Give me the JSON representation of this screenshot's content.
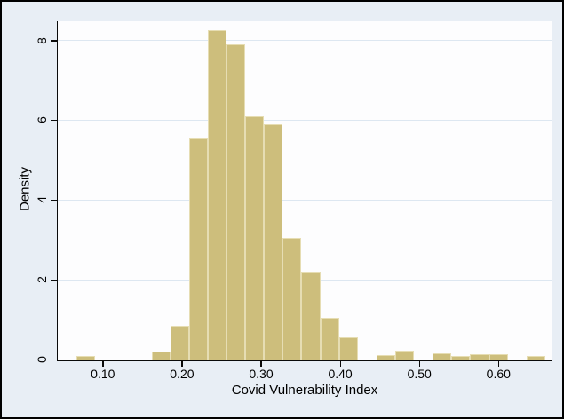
{
  "chart_data": {
    "type": "bar",
    "subtype": "histogram",
    "title": "",
    "xlabel": "Covid Vulnerability Index",
    "ylabel": "Density",
    "xlim": [
      0.043,
      0.667
    ],
    "ylim": [
      0,
      8.48
    ],
    "x_tick_values": [
      0.1,
      0.2,
      0.3,
      0.4,
      0.5,
      0.6
    ],
    "x_tick_labels": [
      "0.10",
      "0.20",
      "0.30",
      "0.40",
      "0.50",
      "0.60"
    ],
    "y_tick_values": [
      0,
      2,
      4,
      6,
      8
    ],
    "y_tick_labels": [
      "0",
      "2",
      "4",
      "6",
      "8"
    ],
    "grid": true,
    "grid_values": [
      2,
      4,
      6,
      8
    ],
    "legend_position": "none",
    "bin_width": 0.0237,
    "bars": [
      {
        "x0": 0.0666,
        "height": 0.08
      },
      {
        "x0": 0.1614,
        "height": 0.2
      },
      {
        "x0": 0.1851,
        "height": 0.85
      },
      {
        "x0": 0.2088,
        "height": 5.55
      },
      {
        "x0": 0.2325,
        "height": 8.25
      },
      {
        "x0": 0.2562,
        "height": 7.9
      },
      {
        "x0": 0.2799,
        "height": 6.1
      },
      {
        "x0": 0.3036,
        "height": 5.9
      },
      {
        "x0": 0.3273,
        "height": 3.05
      },
      {
        "x0": 0.351,
        "height": 2.2
      },
      {
        "x0": 0.3747,
        "height": 1.05
      },
      {
        "x0": 0.3984,
        "height": 0.55
      },
      {
        "x0": 0.4458,
        "height": 0.12
      },
      {
        "x0": 0.4695,
        "height": 0.23
      },
      {
        "x0": 0.5169,
        "height": 0.15
      },
      {
        "x0": 0.5406,
        "height": 0.1
      },
      {
        "x0": 0.5643,
        "height": 0.13
      },
      {
        "x0": 0.588,
        "height": 0.13
      },
      {
        "x0": 0.6354,
        "height": 0.1
      }
    ]
  },
  "style": {
    "figure_background": "#e8eef5",
    "plot_background": "#fdfdfe",
    "gridline_color": "#dde7f1",
    "bar_fill": "#cdbe7c",
    "bar_border": "#e6ddb3",
    "axis_color": "#0a0a0a",
    "text_color": "#000000",
    "frame_color": "#000000"
  }
}
